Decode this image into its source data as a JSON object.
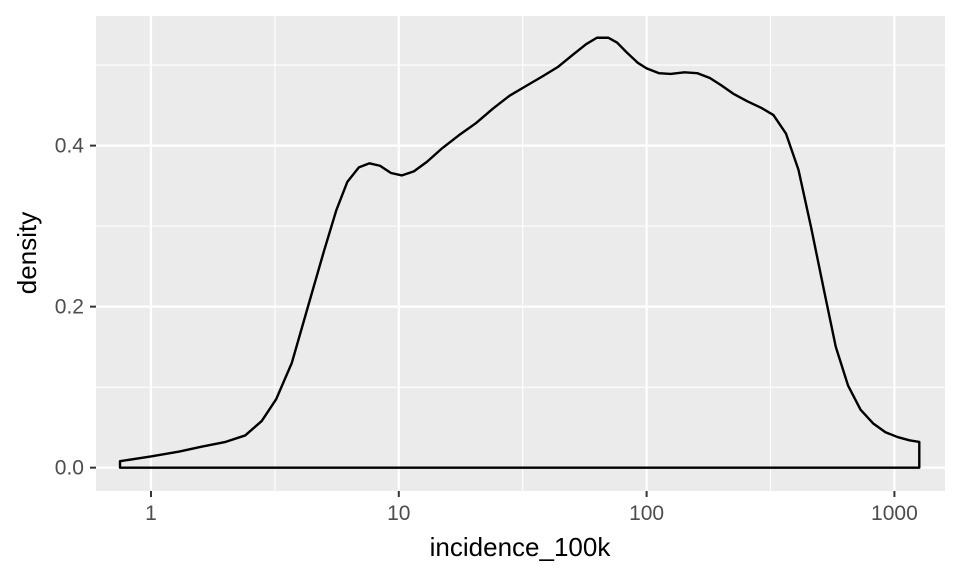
{
  "chart_data": {
    "type": "area",
    "geom": "density",
    "x_scale": "log10",
    "xlabel": "incidence_100k",
    "ylabel": "density",
    "xlim": [
      0.6,
      1600
    ],
    "ylim": [
      -0.029,
      0.561
    ],
    "x_ticks": [
      1,
      10,
      100,
      1000
    ],
    "x_tick_labels": [
      "1",
      "10",
      "100",
      "1000"
    ],
    "y_ticks": [
      0.0,
      0.2,
      0.4
    ],
    "y_tick_labels": [
      "0.0",
      "0.2",
      "0.4"
    ],
    "grid": true,
    "panel_background": "#EBEBEB",
    "grid_color": "#FFFFFF",
    "line_color": "#000000",
    "fill": "none",
    "series": [
      {
        "x": [
          0.75,
          1.0,
          1.3,
          1.6,
          2.0,
          2.4,
          2.8,
          3.2,
          3.7,
          4.3,
          5.0,
          5.6,
          6.2,
          6.9,
          7.6,
          8.4,
          9.3,
          10.3,
          11.5,
          13.0,
          15.0,
          17.5,
          20.5,
          24.0,
          28.0,
          33.0,
          38.0,
          44.0,
          50.0,
          57.0,
          63.0,
          70.0,
          76.0,
          83.0,
          92.0,
          100.0,
          112.0,
          125.0,
          142.0,
          160.0,
          180.0,
          200.0,
          225.0,
          255.0,
          290.0,
          325.0,
          365.0,
          410.0,
          460.0,
          520.0,
          580.0,
          650.0,
          730.0,
          820.0,
          920.0,
          1030.0,
          1150.0,
          1260.0
        ],
        "y": [
          0.008,
          0.014,
          0.02,
          0.026,
          0.032,
          0.04,
          0.058,
          0.085,
          0.13,
          0.2,
          0.27,
          0.32,
          0.355,
          0.373,
          0.378,
          0.375,
          0.366,
          0.363,
          0.368,
          0.38,
          0.397,
          0.413,
          0.428,
          0.446,
          0.462,
          0.475,
          0.486,
          0.498,
          0.512,
          0.526,
          0.534,
          0.534,
          0.528,
          0.516,
          0.503,
          0.496,
          0.49,
          0.489,
          0.491,
          0.49,
          0.484,
          0.475,
          0.464,
          0.455,
          0.447,
          0.438,
          0.415,
          0.37,
          0.3,
          0.22,
          0.15,
          0.102,
          0.072,
          0.055,
          0.044,
          0.038,
          0.034,
          0.032
        ]
      }
    ]
  }
}
